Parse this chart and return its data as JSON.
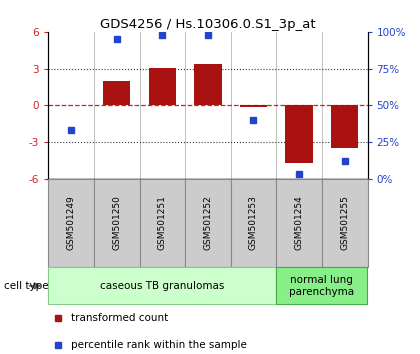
{
  "title": "GDS4256 / Hs.10306.0.S1_3p_at",
  "samples": [
    "GSM501249",
    "GSM501250",
    "GSM501251",
    "GSM501252",
    "GSM501253",
    "GSM501254",
    "GSM501255"
  ],
  "transformed_counts": [
    0.05,
    2.0,
    3.05,
    3.35,
    -0.15,
    -4.7,
    -3.45
  ],
  "percentile_ranks": [
    33,
    95,
    98,
    98,
    40,
    3,
    12
  ],
  "left_ylim": [
    -6,
    6
  ],
  "right_ylim": [
    0,
    100
  ],
  "left_yticks": [
    -6,
    -3,
    0,
    3,
    6
  ],
  "right_yticks": [
    0,
    25,
    50,
    75,
    100
  ],
  "right_yticklabels": [
    "0%",
    "25%",
    "50%",
    "75%",
    "100%"
  ],
  "bar_color": "#aa1111",
  "dot_color": "#2244cc",
  "hline_color": "#cc2222",
  "dotted_color": "#333333",
  "groups": [
    {
      "label": "caseous TB granulomas",
      "samples_idx": [
        0,
        1,
        2,
        3,
        4
      ],
      "bg_color": "#ccffcc",
      "edge_color": "#88cc88"
    },
    {
      "label": "normal lung\nparenchyma",
      "samples_idx": [
        5,
        6
      ],
      "bg_color": "#88ee88",
      "edge_color": "#44aa44"
    }
  ],
  "legend_items": [
    {
      "color": "#aa1111",
      "label": "transformed count"
    },
    {
      "color": "#2244cc",
      "label": "percentile rank within the sample"
    }
  ],
  "cell_type_label": "cell type",
  "background_color": "#ffffff",
  "plot_bg_color": "#ffffff",
  "sample_box_color": "#cccccc",
  "sample_box_edge": "#888888"
}
